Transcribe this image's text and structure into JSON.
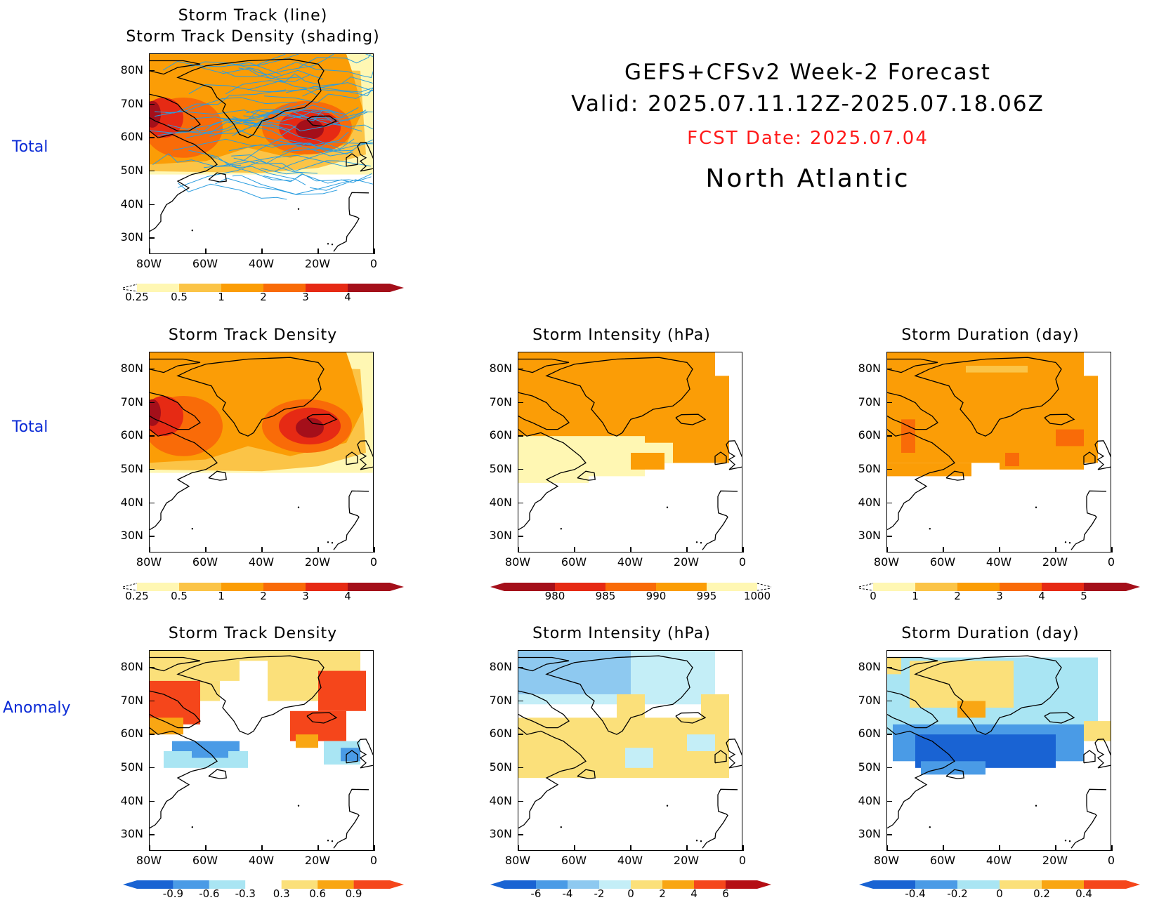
{
  "header": {
    "line1": "GEFS+CFSv2 Week-2 Forecast",
    "line2": "Valid: 2025.07.11.12Z-2025.07.18.06Z",
    "fcst_date": "FCST Date: 2025.07.04",
    "region": "North Atlantic"
  },
  "row_labels": {
    "row1": "Total",
    "row2": "Total",
    "row3": "Anomaly"
  },
  "axes": {
    "lat_ticks": [
      "80N",
      "70N",
      "60N",
      "50N",
      "40N",
      "30N"
    ],
    "lon_ticks": [
      "80W",
      "60W",
      "40W",
      "20W",
      "0"
    ]
  },
  "panels": {
    "p1": {
      "title1": "Storm Track (line)",
      "title2": "Storm Track Density (shading)"
    },
    "p2": {
      "title": "Storm Track Density"
    },
    "p3": {
      "title": "Storm Intensity (hPa)"
    },
    "p4": {
      "title": "Storm Duration (day)"
    },
    "p5": {
      "title": "Storm Track Density"
    },
    "p6": {
      "title": "Storm Intensity (hPa)"
    },
    "p7": {
      "title": "Storm Duration (day)"
    }
  },
  "colorbars": {
    "density_total": {
      "labels": [
        "0.25",
        "0.5",
        "1",
        "2",
        "3",
        "4"
      ],
      "colors": [
        "#fff7b3",
        "#fbc447",
        "#fb9d06",
        "#f96b08",
        "#e62a14",
        "#a40f1a"
      ]
    },
    "intensity_total": {
      "labels": [
        "980",
        "985",
        "990",
        "995",
        "1000"
      ],
      "colors": [
        "#a40f1a",
        "#e62a14",
        "#f96b08",
        "#fb9d06",
        "#fff7b3"
      ]
    },
    "duration_total": {
      "labels": [
        "0",
        "1",
        "2",
        "3",
        "4",
        "5"
      ],
      "colors": [
        "#fff7b3",
        "#fbc447",
        "#fb9d06",
        "#f96b08",
        "#e62a14",
        "#a40f1a"
      ]
    },
    "density_anom": {
      "labels": [
        "-0.9",
        "-0.6",
        "-0.3",
        "0.3",
        "0.6",
        "0.9"
      ],
      "colors": [
        "#1963d3",
        "#4a9be6",
        "#a9e5f3",
        "#ffffff",
        "#fbe07a",
        "#f9a613",
        "#f5461b"
      ]
    },
    "intensity_anom": {
      "labels": [
        "-6",
        "-4",
        "-2",
        "0",
        "2",
        "4",
        "6"
      ],
      "colors": [
        "#1963d3",
        "#4a9be6",
        "#8ec9f0",
        "#c4eef7",
        "#fbe07a",
        "#f9a613",
        "#f5461b",
        "#b50e14"
      ]
    },
    "duration_anom": {
      "labels": [
        "-0.4",
        "-0.2",
        "0",
        "0.2",
        "0.4"
      ],
      "colors": [
        "#1963d3",
        "#4a9be6",
        "#a9e5f3",
        "#fbe07a",
        "#f9a613",
        "#f5461b"
      ]
    }
  },
  "track_line_color": "#2a9de0"
}
